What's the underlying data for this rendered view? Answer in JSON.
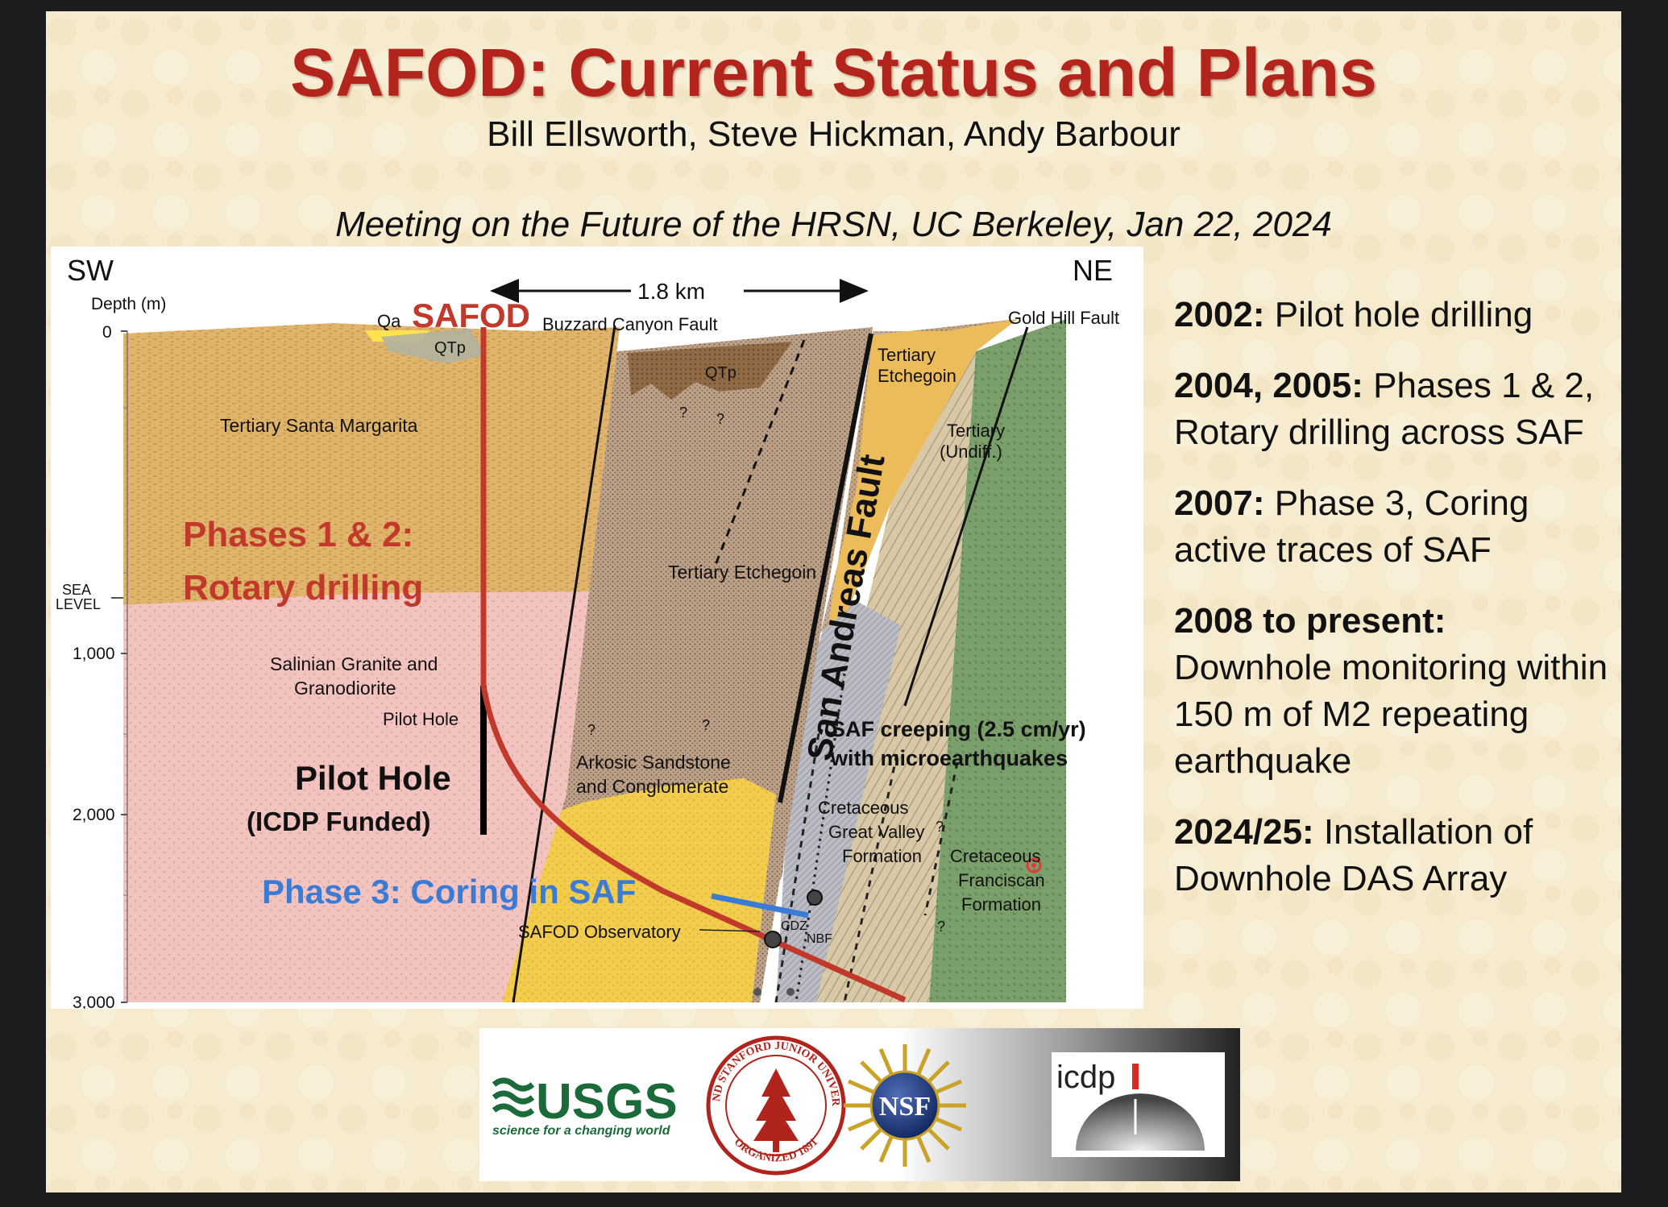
{
  "title": "SAFOD: Current Status and Plans",
  "authors": "Bill Ellsworth, Steve Hickman, Andy Barbour",
  "meeting": "Meeting on the Future of the HRSN, UC Berkeley, Jan 22, 2024",
  "cross_section": {
    "sw": "SW",
    "ne": "NE",
    "depth_label": "Depth (m)",
    "depth_ticks": [
      "0",
      "1,000",
      "2,000",
      "3,000"
    ],
    "sea_level_top": "SEA",
    "sea_level_bottom": "LEVEL",
    "distance_label": "1.8 km",
    "safod": "SAFOD",
    "qa": "Qa",
    "qtp": "QTp",
    "buzzard_canyon_fault": "Buzzard Canyon Fault",
    "gold_hill_fault": "Gold Hill Fault",
    "tertiary_santa_margarita": "Tertiary Santa Margarita",
    "tertiary_etchegoin": "Tertiary Etchegoin",
    "tertiary_etchegoin_top_1": "Tertiary",
    "tertiary_etchegoin_top_2": "Etchegoin",
    "tertiary_undiff_1": "Tertiary",
    "tertiary_undiff_2": "(Undiff.)",
    "san_andreas_fault": "San Andreas Fault",
    "phases_1_2_line1": "Phases 1 & 2:",
    "phases_1_2_line2": "Rotary drilling",
    "salinian_line1": "Salinian Granite and",
    "salinian_line2": "Granodiorite",
    "pilot_hole_small": "Pilot Hole",
    "pilot_hole_big": "Pilot Hole",
    "icdp_funded": "(ICDP Funded)",
    "arkosic_line1": "Arkosic Sandstone",
    "arkosic_line2": "and Conglomerate",
    "saf_creeping": "SAF creeping (2.5 cm/yr)",
    "with_microearthquakes": "with microearthquakes",
    "great_valley_1": "Cretaceous",
    "great_valley_2": "Great Valley",
    "great_valley_3": "Formation",
    "franciscan_1": "Cretaceous",
    "franciscan_2": "Franciscan",
    "franciscan_3": "Formation",
    "phase_3": "Phase 3: Coring in SAF",
    "observatory": "SAFOD Observatory",
    "cdz": "CDZ",
    "nbf": "NBF",
    "question": "?"
  },
  "timeline": [
    {
      "year": "2002:",
      "text": " Pilot hole drilling"
    },
    {
      "year": "2004, 2005:",
      "text": " Phases 1 & 2, Rotary drilling across SAF"
    },
    {
      "year": "2007:",
      "text": " Phase 3, Coring active traces of SAF"
    },
    {
      "year": "2008 to present:",
      "text": " Downhole monitoring within 150 m of M2 repeating earthquake"
    },
    {
      "year": "2024/25:",
      "text": " Installation of Downhole DAS Array"
    }
  ],
  "logos": {
    "usgs": "USGS",
    "usgs_tagline": "science for a changing world",
    "stanford_top": "LELAND STANFORD JUNIOR UNIVERSITY",
    "stanford_bottom": "ORGANIZED 1891",
    "nsf": "NSF",
    "icdp": "icdp"
  },
  "colors": {
    "slide_bg": "#f6ebcf",
    "title_red": "#b3241d",
    "phase_red": "#c0392b",
    "phase_blue": "#3a7bd5",
    "santa_margarita": "#e1b46c",
    "granite_pink": "#f2c3bf",
    "etchegoin_brown": "#b89a82",
    "arkosic_yellow": "#f2cc4c",
    "franciscan_green": "#7a9f6a",
    "great_valley_gray": "#bcbcc4"
  }
}
